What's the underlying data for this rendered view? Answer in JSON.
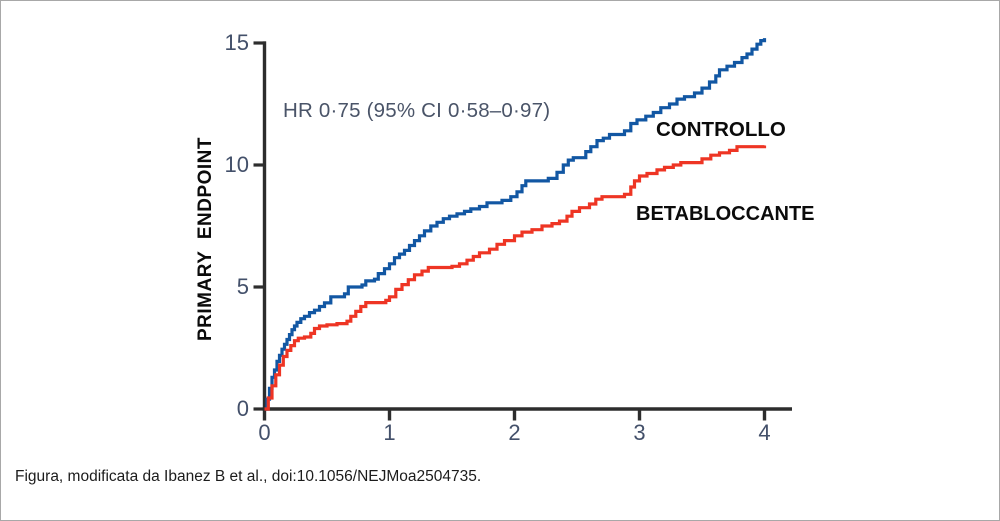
{
  "figure": {
    "caption": "Figura, modificata da Ibanez B et al., doi:10.1056/NEJMoa2504735."
  },
  "chart_data": {
    "type": "line",
    "subtype": "kaplan-meier-step",
    "title": "",
    "xlabel": "",
    "ylabel": "PRIMARY ENDPOINT",
    "annotation": "HR 0·75 (95% CI 0·58–0·97)",
    "xlim": [
      0,
      4.2
    ],
    "ylim": [
      0,
      15
    ],
    "x_ticks": [
      0,
      1,
      2,
      3,
      4
    ],
    "y_ticks": [
      0,
      5,
      10,
      15
    ],
    "grid": false,
    "legend_position": "inline-right-of-curves",
    "colors": {
      "axis": "#2d2d2d",
      "tick_label": "#43506a",
      "annotation": "#4a5468",
      "series_label": "#0b0b0b"
    },
    "series": [
      {
        "name": "CONTROLLO",
        "color": "#1257a3",
        "points": [
          [
            0,
            0
          ],
          [
            0.02,
            0.4
          ],
          [
            0.04,
            0.85
          ],
          [
            0.06,
            1.3
          ],
          [
            0.08,
            1.6
          ],
          [
            0.1,
            1.95
          ],
          [
            0.12,
            2.2
          ],
          [
            0.14,
            2.45
          ],
          [
            0.16,
            2.65
          ],
          [
            0.18,
            2.85
          ],
          [
            0.2,
            3.05
          ],
          [
            0.22,
            3.25
          ],
          [
            0.24,
            3.4
          ],
          [
            0.26,
            3.55
          ],
          [
            0.29,
            3.7
          ],
          [
            0.32,
            3.8
          ],
          [
            0.36,
            3.95
          ],
          [
            0.4,
            4.05
          ],
          [
            0.44,
            4.2
          ],
          [
            0.48,
            4.35
          ],
          [
            0.53,
            4.6
          ],
          [
            0.64,
            4.72
          ],
          [
            0.67,
            5.0
          ],
          [
            0.78,
            5.08
          ],
          [
            0.81,
            5.25
          ],
          [
            0.88,
            5.32
          ],
          [
            0.91,
            5.55
          ],
          [
            0.96,
            5.75
          ],
          [
            1.0,
            5.95
          ],
          [
            1.04,
            6.2
          ],
          [
            1.08,
            6.35
          ],
          [
            1.12,
            6.5
          ],
          [
            1.16,
            6.7
          ],
          [
            1.2,
            6.9
          ],
          [
            1.24,
            7.1
          ],
          [
            1.28,
            7.3
          ],
          [
            1.33,
            7.5
          ],
          [
            1.38,
            7.65
          ],
          [
            1.43,
            7.8
          ],
          [
            1.48,
            7.9
          ],
          [
            1.54,
            8.0
          ],
          [
            1.6,
            8.1
          ],
          [
            1.65,
            8.2
          ],
          [
            1.72,
            8.3
          ],
          [
            1.78,
            8.45
          ],
          [
            1.9,
            8.55
          ],
          [
            1.97,
            8.7
          ],
          [
            2.02,
            8.9
          ],
          [
            2.06,
            9.15
          ],
          [
            2.09,
            9.35
          ],
          [
            2.27,
            9.45
          ],
          [
            2.34,
            9.7
          ],
          [
            2.39,
            10.0
          ],
          [
            2.43,
            10.2
          ],
          [
            2.47,
            10.3
          ],
          [
            2.57,
            10.55
          ],
          [
            2.61,
            10.75
          ],
          [
            2.66,
            11.0
          ],
          [
            2.71,
            11.1
          ],
          [
            2.76,
            11.25
          ],
          [
            2.88,
            11.4
          ],
          [
            2.93,
            11.7
          ],
          [
            2.98,
            11.85
          ],
          [
            3.05,
            12.0
          ],
          [
            3.11,
            12.15
          ],
          [
            3.17,
            12.35
          ],
          [
            3.24,
            12.5
          ],
          [
            3.3,
            12.7
          ],
          [
            3.36,
            12.8
          ],
          [
            3.44,
            12.95
          ],
          [
            3.5,
            13.15
          ],
          [
            3.56,
            13.4
          ],
          [
            3.61,
            13.65
          ],
          [
            3.64,
            13.9
          ],
          [
            3.7,
            14.05
          ],
          [
            3.76,
            14.2
          ],
          [
            3.82,
            14.4
          ],
          [
            3.86,
            14.55
          ],
          [
            3.9,
            14.75
          ],
          [
            3.94,
            14.95
          ],
          [
            3.97,
            15.1
          ],
          [
            4.0,
            15.2
          ]
        ]
      },
      {
        "name": "BETABLOCCANTE",
        "color": "#ee3524",
        "points": [
          [
            0,
            0
          ],
          [
            0.03,
            0.45
          ],
          [
            0.06,
            0.95
          ],
          [
            0.09,
            1.4
          ],
          [
            0.12,
            1.8
          ],
          [
            0.15,
            2.15
          ],
          [
            0.18,
            2.4
          ],
          [
            0.21,
            2.6
          ],
          [
            0.24,
            2.8
          ],
          [
            0.27,
            2.9
          ],
          [
            0.32,
            2.95
          ],
          [
            0.37,
            3.1
          ],
          [
            0.4,
            3.3
          ],
          [
            0.44,
            3.4
          ],
          [
            0.5,
            3.45
          ],
          [
            0.58,
            3.5
          ],
          [
            0.66,
            3.6
          ],
          [
            0.69,
            3.8
          ],
          [
            0.73,
            4.0
          ],
          [
            0.77,
            4.2
          ],
          [
            0.81,
            4.36
          ],
          [
            0.97,
            4.45
          ],
          [
            1.0,
            4.6
          ],
          [
            1.05,
            4.9
          ],
          [
            1.1,
            5.1
          ],
          [
            1.15,
            5.3
          ],
          [
            1.2,
            5.5
          ],
          [
            1.26,
            5.65
          ],
          [
            1.31,
            5.8
          ],
          [
            1.5,
            5.85
          ],
          [
            1.56,
            5.95
          ],
          [
            1.62,
            6.1
          ],
          [
            1.67,
            6.25
          ],
          [
            1.72,
            6.4
          ],
          [
            1.8,
            6.55
          ],
          [
            1.86,
            6.75
          ],
          [
            1.92,
            6.9
          ],
          [
            2.0,
            7.1
          ],
          [
            2.06,
            7.25
          ],
          [
            2.14,
            7.35
          ],
          [
            2.22,
            7.5
          ],
          [
            2.3,
            7.6
          ],
          [
            2.36,
            7.7
          ],
          [
            2.42,
            7.9
          ],
          [
            2.46,
            8.1
          ],
          [
            2.52,
            8.25
          ],
          [
            2.6,
            8.4
          ],
          [
            2.65,
            8.6
          ],
          [
            2.7,
            8.7
          ],
          [
            2.88,
            8.8
          ],
          [
            2.93,
            9.1
          ],
          [
            2.96,
            9.35
          ],
          [
            3.0,
            9.55
          ],
          [
            3.06,
            9.65
          ],
          [
            3.14,
            9.8
          ],
          [
            3.2,
            9.9
          ],
          [
            3.27,
            10.0
          ],
          [
            3.33,
            10.1
          ],
          [
            3.5,
            10.25
          ],
          [
            3.57,
            10.4
          ],
          [
            3.64,
            10.5
          ],
          [
            3.72,
            10.6
          ],
          [
            3.78,
            10.75
          ],
          [
            4.0,
            10.8
          ]
        ]
      }
    ]
  }
}
